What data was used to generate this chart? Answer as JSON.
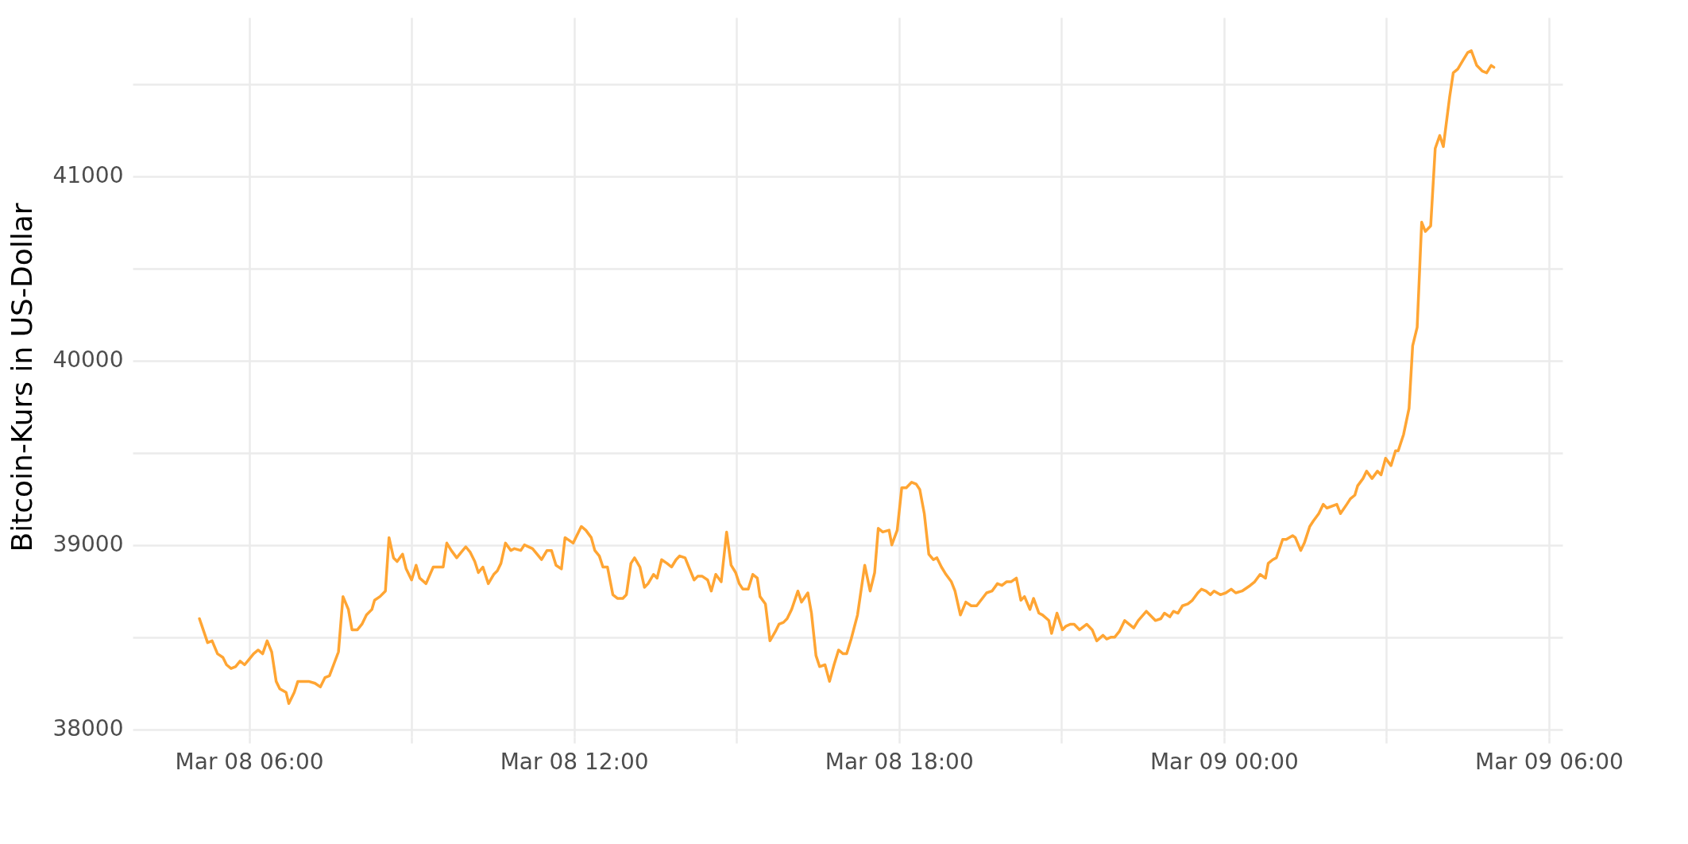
{
  "chart_data": {
    "type": "line",
    "ylabel": "Bitcoin-Kurs in US-Dollar",
    "xlim": [
      "--03-08T03:51",
      "--03-09T06:15"
    ],
    "ylim": [
      37960,
      41860
    ],
    "xticks": [
      {
        "value": "--03-08T06:00",
        "label": "Mar 08 06:00"
      },
      {
        "value": "--03-08T09:00",
        "label": null
      },
      {
        "value": "--03-08T12:00",
        "label": "Mar 08 12:00"
      },
      {
        "value": "--03-08T15:00",
        "label": null
      },
      {
        "value": "--03-08T18:00",
        "label": "Mar 08 18:00"
      },
      {
        "value": "--03-08T21:00",
        "label": null
      },
      {
        "value": "--03-09T00:00",
        "label": "Mar 09 00:00"
      },
      {
        "value": "--03-09T03:00",
        "label": null
      },
      {
        "value": "--03-09T06:00",
        "label": "Mar 09 06:00"
      }
    ],
    "yticks": [
      38000,
      {
        "value": 38500,
        "label": null
      },
      39000,
      {
        "value": 39500,
        "label": null
      },
      40000,
      {
        "value": 40500,
        "label": null
      },
      41000,
      {
        "value": 41500,
        "label": null
      }
    ],
    "grid": true,
    "x": [
      "--03-08T05:05",
      "--03-08T05:14",
      "--03-08T05:19",
      "--03-08T05:25",
      "--03-08T05:31",
      "--03-08T05:35",
      "--03-08T05:40",
      "--03-08T05:45",
      "--03-08T05:50",
      "--03-08T05:55",
      "--03-08T06:00",
      "--03-08T06:05",
      "--03-08T06:10",
      "--03-08T06:15",
      "--03-08T06:20",
      "--03-08T06:25",
      "--03-08T06:30",
      "--03-08T06:34",
      "--03-08T06:41",
      "--03-08T06:44",
      "--03-08T06:50",
      "--03-08T06:54",
      "--03-08T07:00",
      "--03-08T07:06",
      "--03-08T07:13",
      "--03-08T07:19",
      "--03-08T07:24",
      "--03-08T07:29",
      "--03-08T07:39",
      "--03-08T07:44",
      "--03-08T07:50",
      "--03-08T07:54",
      "--03-08T08:00",
      "--03-08T08:05",
      "--03-08T08:10",
      "--03-08T08:16",
      "--03-08T08:19",
      "--03-08T08:25",
      "--03-08T08:31",
      "--03-08T08:35",
      "--03-08T08:40",
      "--03-08T08:44",
      "--03-08T08:50",
      "--03-08T08:54",
      "--03-08T09:00",
      "--03-08T09:05",
      "--03-08T09:09",
      "--03-08T09:16",
      "--03-08T09:24",
      "--03-08T09:29",
      "--03-08T09:35",
      "--03-08T09:39",
      "--03-08T09:44",
      "--03-08T09:50",
      "--03-08T09:55",
      "--03-08T10:00",
      "--03-08T10:05",
      "--03-08T10:10",
      "--03-08T10:14",
      "--03-08T10:19",
      "--03-08T10:25",
      "--03-08T10:31",
      "--03-08T10:35",
      "--03-08T10:39",
      "--03-08T10:44",
      "--03-08T10:50",
      "--03-08T10:54",
      "--03-08T11:01",
      "--03-08T11:05",
      "--03-08T11:14",
      "--03-08T11:24",
      "--03-08T11:30",
      "--03-08T11:35",
      "--03-08T11:40",
      "--03-08T11:46",
      "--03-08T11:50",
      "--03-08T11:59",
      "--03-08T12:08",
      "--03-08T12:13",
      "--03-08T12:19",
      "--03-08T12:23",
      "--03-08T12:28",
      "--03-08T12:32",
      "--03-08T12:37",
      "--03-08T12:43",
      "--03-08T12:48",
      "--03-08T12:54",
      "--03-08T12:58",
      "--03-08T13:03",
      "--03-08T13:07",
      "--03-08T13:13",
      "--03-08T13:18",
      "--03-08T13:22",
      "--03-08T13:28",
      "--03-08T13:32",
      "--03-08T13:37",
      "--03-08T13:43",
      "--03-08T13:48",
      "--03-08T13:53",
      "--03-08T13:57",
      "--03-08T14:03",
      "--03-08T14:08",
      "--03-08T14:13",
      "--03-08T14:17",
      "--03-08T14:22",
      "--03-08T14:28",
      "--03-08T14:32",
      "--03-08T14:37",
      "--03-08T14:43",
      "--03-08T14:49",
      "--03-08T14:54",
      "--03-08T14:59",
      "--03-08T15:03",
      "--03-08T15:07",
      "--03-08T15:13",
      "--03-08T15:18",
      "--03-08T15:23",
      "--03-08T15:26",
      "--03-08T15:32",
      "--03-08T15:37",
      "--03-08T15:43",
      "--03-08T15:47",
      "--03-08T15:52",
      "--03-08T15:56",
      "--03-08T16:01",
      "--03-08T16:08",
      "--03-08T16:12",
      "--03-08T16:19",
      "--03-08T16:23",
      "--03-08T16:28",
      "--03-08T16:32",
      "--03-08T16:38",
      "--03-08T16:43",
      "--03-08T16:48",
      "--03-08T16:53",
      "--03-08T16:58",
      "--03-08T17:02",
      "--03-08T17:07",
      "--03-08T17:14",
      "--03-08T17:22",
      "--03-08T17:28",
      "--03-08T17:33",
      "--03-08T17:37",
      "--03-08T17:42",
      "--03-08T17:49",
      "--03-08T17:52",
      "--03-08T17:58",
      "--03-08T18:03",
      "--03-08T18:08",
      "--03-08T18:14",
      "--03-08T18:19",
      "--03-08T18:23",
      "--03-08T18:28",
      "--03-08T18:33",
      "--03-08T18:38",
      "--03-08T18:42",
      "--03-08T18:47",
      "--03-08T18:52",
      "--03-08T18:58",
      "--03-08T19:02",
      "--03-08T19:08",
      "--03-08T19:14",
      "--03-08T19:20",
      "--03-08T19:26",
      "--03-08T19:37",
      "--03-08T19:43",
      "--03-08T19:49",
      "--03-08T19:54",
      "--03-08T19:59",
      "--03-08T20:04",
      "--03-08T20:10",
      "--03-08T20:15",
      "--03-08T20:19",
      "--03-08T20:25",
      "--03-08T20:29",
      "--03-08T20:35",
      "--03-08T20:39",
      "--03-08T20:46",
      "--03-08T20:49",
      "--03-08T20:55",
      "--03-08T21:01",
      "--03-08T21:05",
      "--03-08T21:10",
      "--03-08T21:14",
      "--03-08T21:20",
      "--03-08T21:28",
      "--03-08T21:34",
      "--03-08T21:39",
      "--03-08T21:46",
      "--03-08T21:50",
      "--03-08T21:55",
      "--03-08T21:59",
      "--03-08T22:04",
      "--03-08T22:10",
      "--03-08T22:20",
      "--03-08T22:25",
      "--03-08T22:34",
      "--03-08T22:44",
      "--03-08T22:50",
      "--03-08T22:54",
      "--03-08T23:00",
      "--03-08T23:04",
      "--03-08T23:09",
      "--03-08T23:14",
      "--03-08T23:20",
      "--03-08T23:25",
      "--03-08T23:31",
      "--03-08T23:35",
      "--03-08T23:40",
      "--03-08T23:45",
      "--03-08T23:49",
      "--03-08T23:56",
      "--03-09T00:02",
      "--03-09T00:08",
      "--03-09T00:13",
      "--03-09T00:20",
      "--03-09T00:29",
      "--03-09T00:34",
      "--03-09T00:40",
      "--03-09T00:46",
      "--03-09T00:49",
      "--03-09T00:54",
      "--03-09T00:58",
      "--03-09T01:05",
      "--03-09T01:09",
      "--03-09T01:16",
      "--03-09T01:19",
      "--03-09T01:25",
      "--03-09T01:29",
      "--03-09T01:35",
      "--03-09T01:39",
      "--03-09T01:45",
      "--03-09T01:50",
      "--03-09T01:54",
      "--03-09T02:05",
      "--03-09T02:09",
      "--03-09T02:16",
      "--03-09T02:20",
      "--03-09T02:25",
      "--03-09T02:28",
      "--03-09T02:34",
      "--03-09T02:38",
      "--03-09T02:44",
      "--03-09T02:50",
      "--03-09T02:54",
      "--03-09T02:59",
      "--03-09T03:05",
      "--03-09T03:10",
      "--03-09T03:13",
      "--03-09T03:19",
      "--03-09T03:25",
      "--03-09T03:29",
      "--03-09T03:34",
      "--03-09T03:39",
      "--03-09T03:43",
      "--03-09T03:49",
      "--03-09T03:54",
      "--03-09T03:59",
      "--03-09T04:03",
      "--03-09T04:10",
      "--03-09T04:14",
      "--03-09T04:19",
      "--03-09T04:25",
      "--03-09T04:30",
      "--03-09T04:34",
      "--03-09T04:40",
      "--03-09T04:46",
      "--03-09T04:51",
      "--03-09T04:56",
      "--03-09T04:59"
    ],
    "series": [
      {
        "color": "#ffa533",
        "values": [
          38600,
          38470,
          38480,
          38410,
          38390,
          38350,
          38330,
          38340,
          38370,
          38350,
          38380,
          38410,
          38430,
          38410,
          38480,
          38420,
          38260,
          38220,
          38200,
          38140,
          38200,
          38260,
          38260,
          38260,
          38250,
          38230,
          38280,
          38290,
          38420,
          38720,
          38650,
          38540,
          38540,
          38570,
          38620,
          38650,
          38700,
          38720,
          38750,
          39040,
          38930,
          38910,
          38950,
          38870,
          38810,
          38890,
          38820,
          38790,
          38880,
          38880,
          38880,
          39010,
          38970,
          38930,
          38960,
          38990,
          38960,
          38910,
          38850,
          38880,
          38790,
          38840,
          38860,
          38900,
          39010,
          38970,
          38980,
          38970,
          39000,
          38980,
          38920,
          38970,
          38970,
          38890,
          38870,
          39040,
          39010,
          39100,
          39080,
          39040,
          38970,
          38940,
          38880,
          38880,
          38730,
          38710,
          38710,
          38730,
          38900,
          38930,
          38880,
          38770,
          38790,
          38840,
          38820,
          38920,
          38900,
          38880,
          38920,
          38940,
          38930,
          38870,
          38810,
          38830,
          38830,
          38810,
          38750,
          38840,
          38800,
          39070,
          38890,
          38850,
          38790,
          38760,
          38760,
          38840,
          38820,
          38720,
          38680,
          38480,
          38530,
          38570,
          38580,
          38600,
          38650,
          38750,
          38690,
          38740,
          38630,
          38400,
          38340,
          38350,
          38260,
          38350,
          38430,
          38410,
          38410,
          38490,
          38620,
          38890,
          38750,
          38850,
          39090,
          39070,
          39080,
          39000,
          39080,
          39310,
          39310,
          39340,
          39330,
          39300,
          39170,
          38950,
          38920,
          38930,
          38880,
          38840,
          38800,
          38750,
          38620,
          38690,
          38670,
          38670,
          38740,
          38750,
          38790,
          38780,
          38800,
          38800,
          38820,
          38700,
          38720,
          38650,
          38710,
          38630,
          38620,
          38590,
          38520,
          38630,
          38540,
          38560,
          38570,
          38570,
          38540,
          38570,
          38540,
          38480,
          38510,
          38490,
          38500,
          38500,
          38530,
          38590,
          38550,
          38590,
          38640,
          38590,
          38600,
          38630,
          38610,
          38640,
          38630,
          38670,
          38680,
          38700,
          38740,
          38760,
          38750,
          38730,
          38750,
          38730,
          38740,
          38760,
          38740,
          38750,
          38780,
          38800,
          38840,
          38820,
          38900,
          38920,
          38930,
          39030,
          39030,
          39050,
          39040,
          38970,
          39010,
          39100,
          39130,
          39170,
          39220,
          39200,
          39220,
          39170,
          39220,
          39250,
          39270,
          39320,
          39360,
          39400,
          39360,
          39400,
          39380,
          39470,
          39430,
          39510,
          39510,
          39600,
          39740,
          40080,
          40180,
          40750,
          40700,
          40730,
          41150,
          41220,
          41160,
          41430,
          41560,
          41580,
          41630,
          41670,
          41680,
          41600,
          41570,
          41560,
          41600,
          41590
        ]
      }
    ]
  }
}
